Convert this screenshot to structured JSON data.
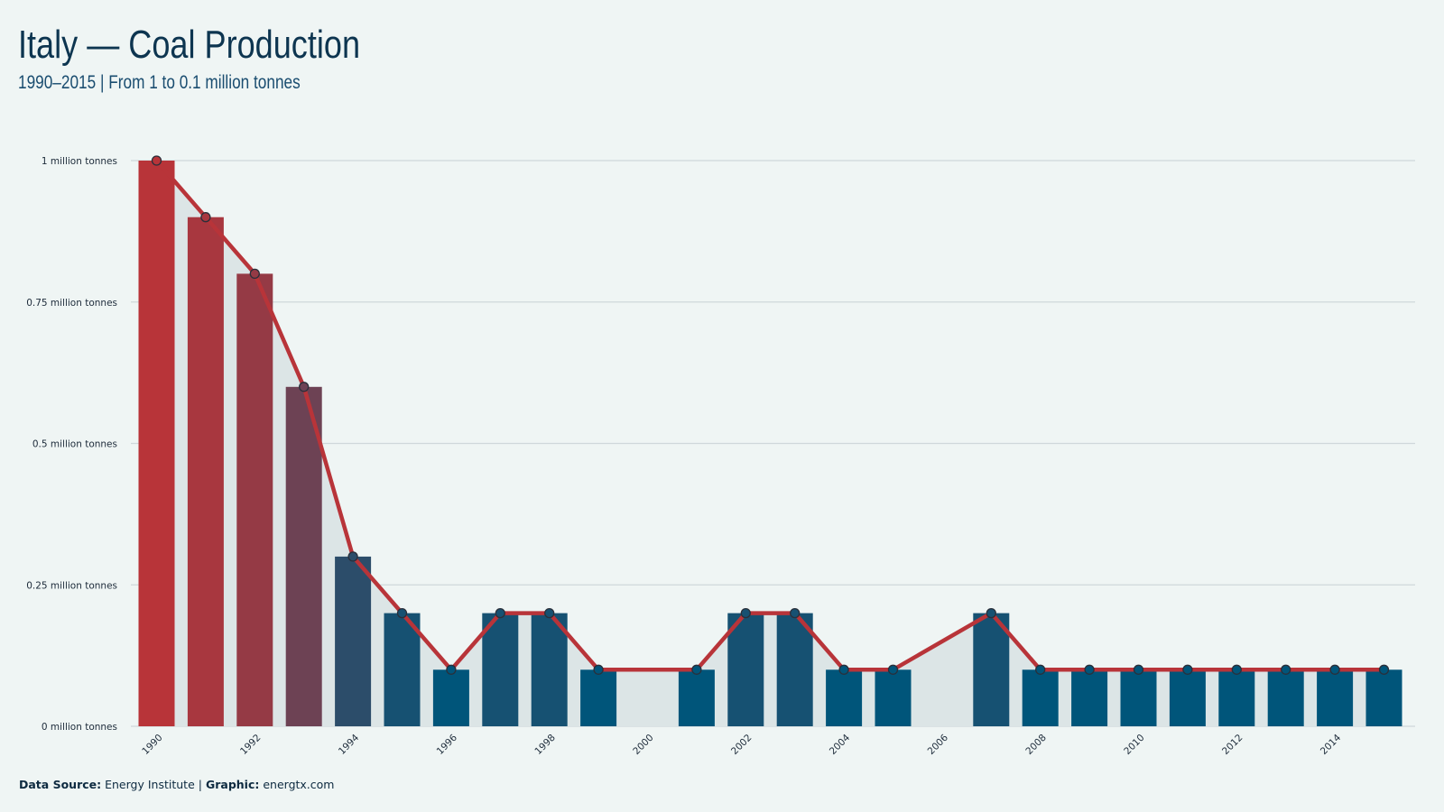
{
  "title": "Italy — Coal Production",
  "subtitle": "1990–2015 | From 1 to 0.1 million tonnes",
  "footer": {
    "source_label": "Data Source:",
    "source_value": "Energy Institute",
    "separator": "|",
    "graphic_label": "Graphic:",
    "graphic_value": "energtx.com"
  },
  "colors": {
    "background": "#eff5f4",
    "line": "#b83439",
    "area": "#dce5e6",
    "bar_high": "#b83439",
    "bar_low": "#00557a",
    "grid": "#cfd8db"
  },
  "chart_data": {
    "type": "bar",
    "x": [
      1990,
      1991,
      1992,
      1993,
      1994,
      1995,
      1996,
      1997,
      1998,
      1999,
      2000,
      2001,
      2002,
      2003,
      2004,
      2005,
      2006,
      2007,
      2008,
      2009,
      2010,
      2011,
      2012,
      2013,
      2014,
      2015
    ],
    "series": [
      {
        "values": [
          1.0,
          0.9,
          0.8,
          0.6,
          0.3,
          0.2,
          0.1,
          0.2,
          0.2,
          0.1,
          null,
          0.1,
          0.2,
          0.2,
          0.1,
          0.1,
          null,
          0.2,
          0.1,
          0.1,
          0.1,
          0.1,
          0.1,
          0.1,
          0.1,
          0.1
        ]
      }
    ],
    "overlay": "line with markers and shaded area",
    "ylim": [
      0,
      1
    ],
    "yticks": [
      0,
      0.25,
      0.5,
      0.75,
      1
    ],
    "ytick_labels": [
      "0 million tonnes",
      "0.25 million tonnes",
      "0.5 million tonnes",
      "0.75 million tonnes",
      "1 million tonnes"
    ],
    "xtick_labels": [
      "1990",
      "1992",
      "1994",
      "1996",
      "1998",
      "2000",
      "2002",
      "2004",
      "2006",
      "2008",
      "2010",
      "2012",
      "2014"
    ],
    "xlabel": "",
    "ylabel": "",
    "grid": "horizontal"
  }
}
